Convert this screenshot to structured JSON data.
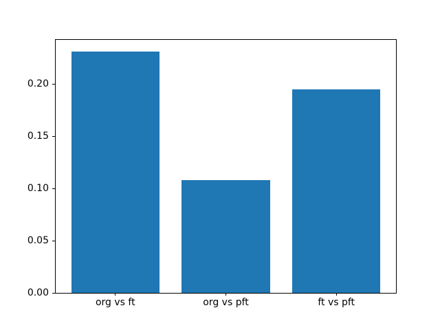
{
  "chart_data": {
    "type": "bar",
    "categories": [
      "org vs ft",
      "org vs pft",
      "ft vs pft"
    ],
    "values": [
      0.231,
      0.108,
      0.195
    ],
    "title": "",
    "xlabel": "",
    "ylabel": "",
    "yticks": [
      "0.00",
      "0.05",
      "0.10",
      "0.15",
      "0.20"
    ],
    "ytick_values": [
      0,
      0.05,
      0.1,
      0.15,
      0.2
    ],
    "ylim": [
      0,
      0.2422
    ],
    "xlim": [
      -0.54,
      2.54
    ],
    "bar_width": 0.8,
    "bar_color": "#1f77b4",
    "background_color": "#ffffff",
    "spine_color": "#000000",
    "grid": false,
    "legend": null
  }
}
